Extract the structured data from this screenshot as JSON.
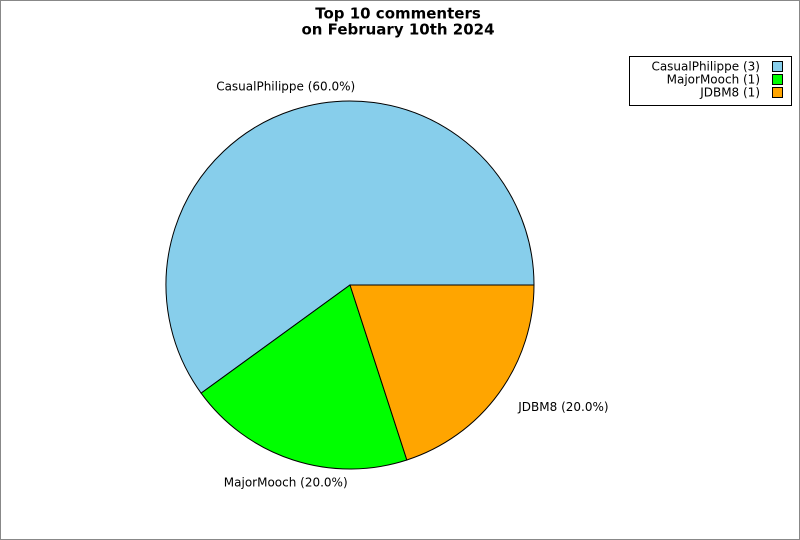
{
  "chart_data": {
    "type": "pie",
    "title": [
      "Top 10 commenters",
      "on February 10th 2024"
    ],
    "values": [
      3,
      1,
      1
    ],
    "labels": [
      "CasualPhilippe (60.0%)",
      "MajorMooch (20.0%)",
      "JDBM8 (20.0%)"
    ],
    "legend_labels": [
      "CasualPhilippe (3)",
      "MajorMooch (1)",
      "JDBM8 (1)"
    ],
    "colors": [
      "#87ceeb",
      "#00ff00",
      "#ffa500"
    ],
    "legend": "upper right"
  }
}
